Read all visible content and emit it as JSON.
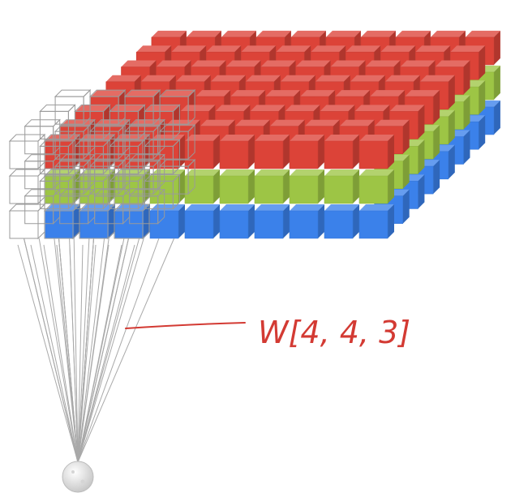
{
  "annotation": {
    "weight_label": "W[4, 4, 3]"
  },
  "tensor": {
    "layers": [
      {
        "name": "red",
        "color": "#dc4338"
      },
      {
        "name": "green",
        "color": "#9dc545"
      },
      {
        "name": "blue",
        "color": "#3b81ea"
      }
    ],
    "filter_size": [
      4,
      4,
      3
    ]
  },
  "colors": {
    "red": "#dc4338",
    "green": "#9dc545",
    "blue": "#3b81ea",
    "connection_lines": "#a9a9a9",
    "wireframe": "#9a9a9a",
    "annotation_ink": "#d33a33",
    "neuron": "#e6e6e6"
  },
  "icons": {
    "neuron": "sphere-node-icon"
  }
}
